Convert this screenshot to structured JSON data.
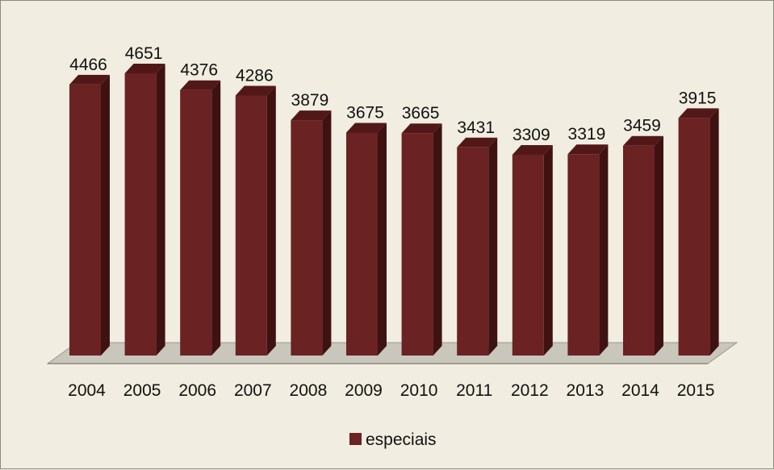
{
  "chart_data": {
    "type": "bar",
    "style": "3d-column",
    "categories": [
      "2004",
      "2005",
      "2006",
      "2007",
      "2008",
      "2009",
      "2010",
      "2011",
      "2012",
      "2013",
      "2014",
      "2015"
    ],
    "series": [
      {
        "name": "especiais",
        "values": [
          4466,
          4651,
          4376,
          4286,
          3879,
          3675,
          3665,
          3431,
          3309,
          3319,
          3459,
          3915
        ],
        "color": "#6b2222"
      }
    ],
    "ylim": [
      0,
      4651
    ],
    "grid": false,
    "data_labels": true,
    "legend_position": "bottom",
    "colors": {
      "background": "#f1ede0",
      "bar_front": "#6b2222",
      "bar_side": "#3f1212",
      "bar_top": "#521818",
      "floor": "#c9c6bc"
    }
  }
}
